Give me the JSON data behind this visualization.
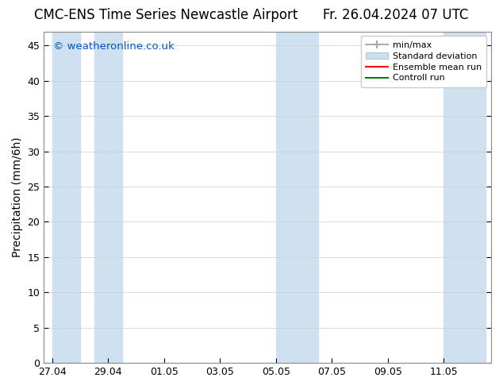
{
  "title_left": "CMC-ENS Time Series Newcastle Airport",
  "title_right": "Fr. 26.04.2024 07 UTC",
  "ylabel": "Precipitation (mm/6h)",
  "watermark": "© weatheronline.co.uk",
  "watermark_color": "#0055cc",
  "background_color": "#ffffff",
  "plot_bg_color": "#ffffff",
  "ylim": [
    0,
    47
  ],
  "yticks": [
    0,
    5,
    10,
    15,
    20,
    25,
    30,
    35,
    40,
    45
  ],
  "shade_color": "#cfe0f0",
  "shade_x_pairs": [
    [
      0.0,
      1.0
    ],
    [
      1.5,
      2.5
    ],
    [
      8.0,
      9.5
    ],
    [
      14.0,
      15.5
    ]
  ],
  "x_tick_labels": [
    "27.04",
    "29.04",
    "01.05",
    "03.05",
    "05.05",
    "07.05",
    "09.05",
    "11.05"
  ],
  "x_tick_positions": [
    0,
    2,
    4,
    6,
    8,
    10,
    12,
    14
  ],
  "xlim": [
    -0.3,
    15.7
  ],
  "legend_entries": [
    "min/max",
    "Standard deviation",
    "Ensemble mean run",
    "Controll run"
  ],
  "minmax_color": "#aaaaaa",
  "std_color": "#c8dff0",
  "ensemble_color": "#ff0000",
  "control_color": "#008000",
  "title_fontsize": 12,
  "axis_fontsize": 10,
  "tick_fontsize": 9
}
